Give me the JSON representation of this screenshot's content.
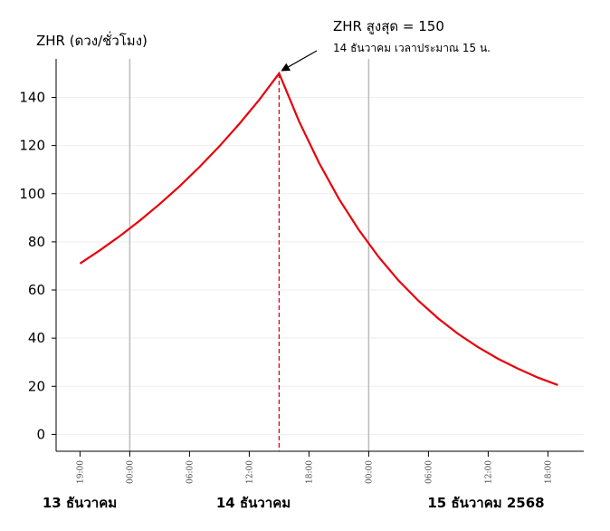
{
  "chart_data": {
    "type": "line",
    "y_label": "ZHR (ดวง/ชั่วโมง)",
    "annotation": {
      "title": "ZHR สูงสุด = 150",
      "subtitle": "14 ธันวาคม เวลาประมาณ 15 น."
    },
    "x": [
      19,
      21,
      23,
      25,
      27,
      29,
      31,
      33,
      35,
      37,
      39,
      41,
      43,
      45,
      47,
      49,
      51,
      53,
      55,
      57,
      59,
      61,
      63,
      65,
      67
    ],
    "series": [
      {
        "color": "#e8000b",
        "values": [
          71,
          76.5,
          82.4,
          88.8,
          95.7,
          103.1,
          111.1,
          119.7,
          129,
          139,
          150,
          130.1,
          112.9,
          97.9,
          85,
          73.7,
          63.9,
          55.5,
          48.1,
          41.7,
          36.2,
          31.4,
          27.3,
          23.6,
          20.5
        ]
      }
    ],
    "xlim": [
      16.6,
      69.6
    ],
    "ylim": [
      -7,
      156
    ],
    "yticks": [
      0,
      20,
      40,
      60,
      80,
      100,
      120,
      140
    ],
    "xticks": [
      {
        "value": 19,
        "label": "19:00"
      },
      {
        "value": 24,
        "label": "00:00"
      },
      {
        "value": 30,
        "label": "06:00"
      },
      {
        "value": 36,
        "label": "12:00"
      },
      {
        "value": 42,
        "label": "18:00"
      },
      {
        "value": 48,
        "label": "00:00"
      },
      {
        "value": 54,
        "label": "06:00"
      },
      {
        "value": 60,
        "label": "12:00"
      },
      {
        "value": 66,
        "label": "18:00"
      }
    ],
    "day_lines": [
      24,
      48
    ],
    "day_labels": [
      "13 ธันวาคม",
      "14 ธันวาคม",
      "15 ธันวาคม 2568"
    ],
    "grid": true
  }
}
